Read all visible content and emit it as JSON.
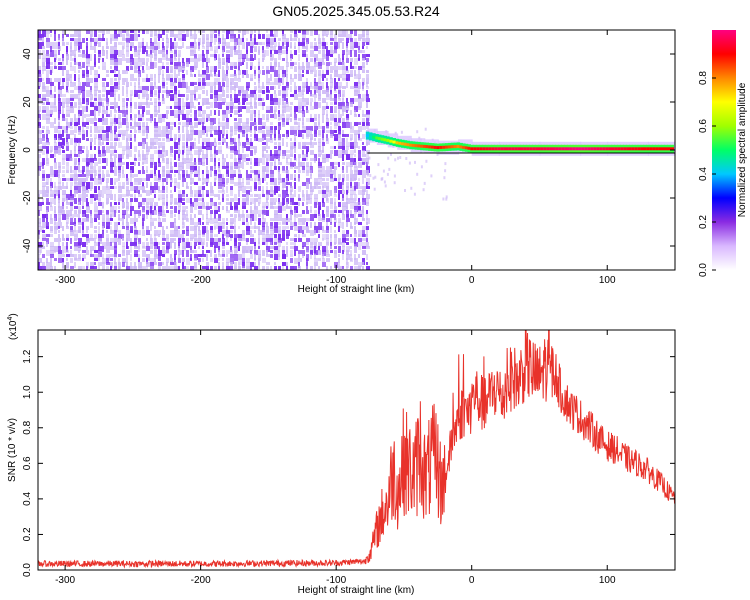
{
  "title": "GN05.2025.345.05.53.R24",
  "colors": {
    "spectrogram_noise": "#7b2cf0",
    "spectrogram_light": "#c9b3f5",
    "signal_line": "#e8322a",
    "colorbar": [
      "#ffffff",
      "#d9b8ff",
      "#8a2be2",
      "#0000ff",
      "#00c8ff",
      "#00ff66",
      "#a0ff00",
      "#ffff00",
      "#ff8800",
      "#ff0000",
      "#ff0080"
    ]
  },
  "chart_data": [
    {
      "type": "heatmap",
      "name": "spectrogram",
      "xlabel": "Height of straight line (km)",
      "ylabel": "Frequency (Hz)",
      "xlim": [
        -320,
        150
      ],
      "ylim": [
        -50,
        50
      ],
      "xticks": [
        -300,
        -200,
        -100,
        0,
        100
      ],
      "xtick_labels": [
        "-300",
        "-200",
        "-100",
        "0",
        "100"
      ],
      "yticks": [
        -40,
        -20,
        0,
        20,
        40
      ],
      "ytick_labels": [
        "-40",
        "-20",
        "0",
        "20",
        "40"
      ],
      "noise_region_km": [
        -320,
        -77
      ],
      "signal_track": [
        {
          "x": -77,
          "f": 6,
          "amp": 0.4
        },
        {
          "x": -70,
          "f": 5,
          "amp": 0.55
        },
        {
          "x": -62,
          "f": 4,
          "amp": 0.6
        },
        {
          "x": -55,
          "f": 3,
          "amp": 0.75
        },
        {
          "x": -45,
          "f": 2,
          "amp": 0.8
        },
        {
          "x": -35,
          "f": 1.5,
          "amp": 0.85
        },
        {
          "x": -25,
          "f": 1,
          "amp": 0.9
        },
        {
          "x": -10,
          "f": 1.5,
          "amp": 0.8
        },
        {
          "x": 0,
          "f": 0.5,
          "amp": 0.9
        },
        {
          "x": 20,
          "f": 0.5,
          "amp": 0.95
        },
        {
          "x": 50,
          "f": 0.5,
          "amp": 0.95
        },
        {
          "x": 80,
          "f": 0.5,
          "amp": 1.0
        },
        {
          "x": 100,
          "f": 0.5,
          "amp": 0.95
        },
        {
          "x": 130,
          "f": 0.5,
          "amp": 0.9
        },
        {
          "x": 150,
          "f": 0.5,
          "amp": 0.9
        }
      ],
      "colorbar": {
        "label": "Normalized spectral amplitude",
        "range": [
          0,
          1
        ],
        "ticks": [
          0.0,
          0.2,
          0.4,
          0.6,
          0.8
        ],
        "tick_labels": [
          "0.0",
          "0.2",
          "0.4",
          "0.6",
          "0.8"
        ]
      }
    },
    {
      "type": "line",
      "name": "snr",
      "xlabel": "Height of straight line (km)",
      "ylabel": "SNR (10 * v/v)",
      "multiplier_label": "(x10",
      "multiplier_exp": "4",
      "multiplier_close": ")",
      "xlim": [
        -320,
        150
      ],
      "ylim": [
        0,
        13500
      ],
      "xticks": [
        -300,
        -200,
        -100,
        0,
        100
      ],
      "xtick_labels": [
        "-300",
        "-200",
        "-100",
        "0",
        "100"
      ],
      "yticks": [
        0,
        2000,
        4000,
        6000,
        8000,
        10000,
        12000
      ],
      "ytick_labels": [
        "0.0",
        "0.2",
        "0.4",
        "0.6",
        "0.8",
        "1.0",
        "1.2"
      ],
      "series": [
        {
          "name": "SNR",
          "x": [
            -320,
            -200,
            -100,
            -78,
            -74,
            -70,
            -66,
            -62,
            -58,
            -54,
            -50,
            -46,
            -42,
            -38,
            -34,
            -30,
            -26,
            -22,
            -18,
            -14,
            -10,
            -6,
            -2,
            2,
            6,
            10,
            14,
            18,
            22,
            26,
            30,
            34,
            38,
            42,
            46,
            50,
            54,
            58,
            62,
            66,
            70,
            74,
            78,
            82,
            86,
            90,
            94,
            98,
            102,
            106,
            110,
            114,
            118,
            122,
            126,
            130,
            134,
            138,
            142,
            146,
            150
          ],
          "y": [
            350,
            350,
            400,
            500,
            900,
            1800,
            2500,
            3000,
            4500,
            3500,
            5000,
            4500,
            4200,
            5500,
            4000,
            4800,
            5000,
            3500,
            5800,
            7500,
            8500,
            9000,
            8800,
            10000,
            9500,
            9200,
            9800,
            10300,
            9600,
            10200,
            11000,
            10500,
            11300,
            11500,
            11000,
            10800,
            11500,
            11200,
            11000,
            10000,
            9500,
            9000,
            8800,
            8400,
            8100,
            7800,
            7400,
            7100,
            6900,
            6800,
            6500,
            6300,
            6100,
            6000,
            5800,
            5600,
            5300,
            5000,
            4700,
            4300,
            4000
          ]
        }
      ]
    }
  ]
}
